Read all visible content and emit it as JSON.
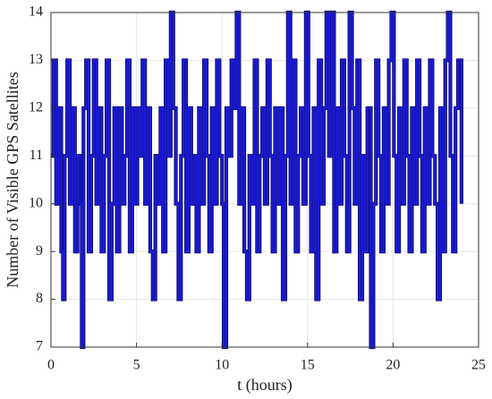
{
  "chart_data": {
    "type": "line",
    "drawstyle": "steps-post",
    "xlabel": "t (hours)",
    "ylabel": "Number of Visible GPS Satellites",
    "xlim": [
      0,
      25
    ],
    "xticks": [
      0,
      5,
      10,
      15,
      20,
      25
    ],
    "ylim": [
      7,
      14
    ],
    "yticks": [
      7,
      8,
      9,
      10,
      11,
      12,
      13,
      14
    ],
    "grid": true,
    "series": [
      {
        "color": "#1a1ad6",
        "x": [
          0,
          0.15,
          0.3,
          0.45,
          0.6,
          0.7,
          0.8,
          0.95,
          1.1,
          1.25,
          1.4,
          1.55,
          1.7,
          1.8,
          1.9,
          2.05,
          2.2,
          2.35,
          2.5,
          2.65,
          2.8,
          2.95,
          3.1,
          3.25,
          3.4,
          3.55,
          3.7,
          3.85,
          4.0,
          4.15,
          4.3,
          4.45,
          4.6,
          4.75,
          4.9,
          5.05,
          5.2,
          5.35,
          5.5,
          5.65,
          5.8,
          5.95,
          6.1,
          6.25,
          6.4,
          6.55,
          6.7,
          6.85,
          7.0,
          7.15,
          7.3,
          7.45,
          7.6,
          7.75,
          7.9,
          8.05,
          8.2,
          8.35,
          8.5,
          8.65,
          8.8,
          8.95,
          9.1,
          9.25,
          9.4,
          9.55,
          9.7,
          9.85,
          10.0,
          10.1,
          10.25,
          10.4,
          10.55,
          10.7,
          10.85,
          11.0,
          11.15,
          11.3,
          11.45,
          11.6,
          11.75,
          11.9,
          12.05,
          12.2,
          12.35,
          12.5,
          12.65,
          12.8,
          12.95,
          13.1,
          13.25,
          13.4,
          13.55,
          13.7,
          13.85,
          14.0,
          14.15,
          14.3,
          14.45,
          14.6,
          14.75,
          14.9,
          15.05,
          15.2,
          15.35,
          15.5,
          15.65,
          15.8,
          15.95,
          16.1,
          16.25,
          16.4,
          16.55,
          16.7,
          16.85,
          17.0,
          17.15,
          17.3,
          17.45,
          17.6,
          17.75,
          17.9,
          18.05,
          18.2,
          18.35,
          18.5,
          18.7,
          18.85,
          19.0,
          19.15,
          19.3,
          19.45,
          19.6,
          19.75,
          19.9,
          20.05,
          20.2,
          20.35,
          20.5,
          20.65,
          20.8,
          20.95,
          21.1,
          21.25,
          21.4,
          21.55,
          21.7,
          21.85,
          22.0,
          22.15,
          22.3,
          22.45,
          22.6,
          22.75,
          22.9,
          23.05,
          23.2,
          23.35,
          23.5,
          23.65,
          23.8,
          24.0
        ],
        "values": [
          11,
          13,
          10,
          12,
          9,
          8,
          11,
          13,
          10,
          12,
          9,
          11,
          10,
          7,
          12,
          13,
          9,
          11,
          13,
          10,
          12,
          9,
          11,
          13,
          8,
          10,
          12,
          9,
          12,
          10,
          11,
          13,
          9,
          12,
          10,
          12,
          11,
          13,
          10,
          12,
          9,
          8,
          11,
          10,
          12,
          9,
          13,
          11,
          14,
          12,
          10,
          8,
          11,
          13,
          9,
          12,
          10,
          11,
          9,
          12,
          10,
          13,
          11,
          9,
          12,
          10,
          13,
          11,
          10,
          7,
          12,
          11,
          13,
          12,
          14,
          10,
          12,
          9,
          8,
          11,
          10,
          13,
          9,
          11,
          12,
          10,
          13,
          11,
          9,
          12,
          10,
          12,
          8,
          11,
          14,
          10,
          13,
          9,
          11,
          12,
          10,
          14,
          11,
          9,
          12,
          8,
          13,
          10,
          12,
          14,
          11,
          14,
          9,
          12,
          10,
          13,
          11,
          9,
          14,
          12,
          10,
          13,
          8,
          11,
          9,
          12,
          7,
          10,
          13,
          11,
          9,
          12,
          10,
          13,
          14,
          11,
          9,
          12,
          10,
          13,
          11,
          9,
          12,
          10,
          13,
          11,
          9,
          12,
          10,
          13,
          11,
          10,
          8,
          12,
          9,
          13,
          14,
          11,
          9,
          12,
          13,
          10
        ]
      }
    ]
  }
}
